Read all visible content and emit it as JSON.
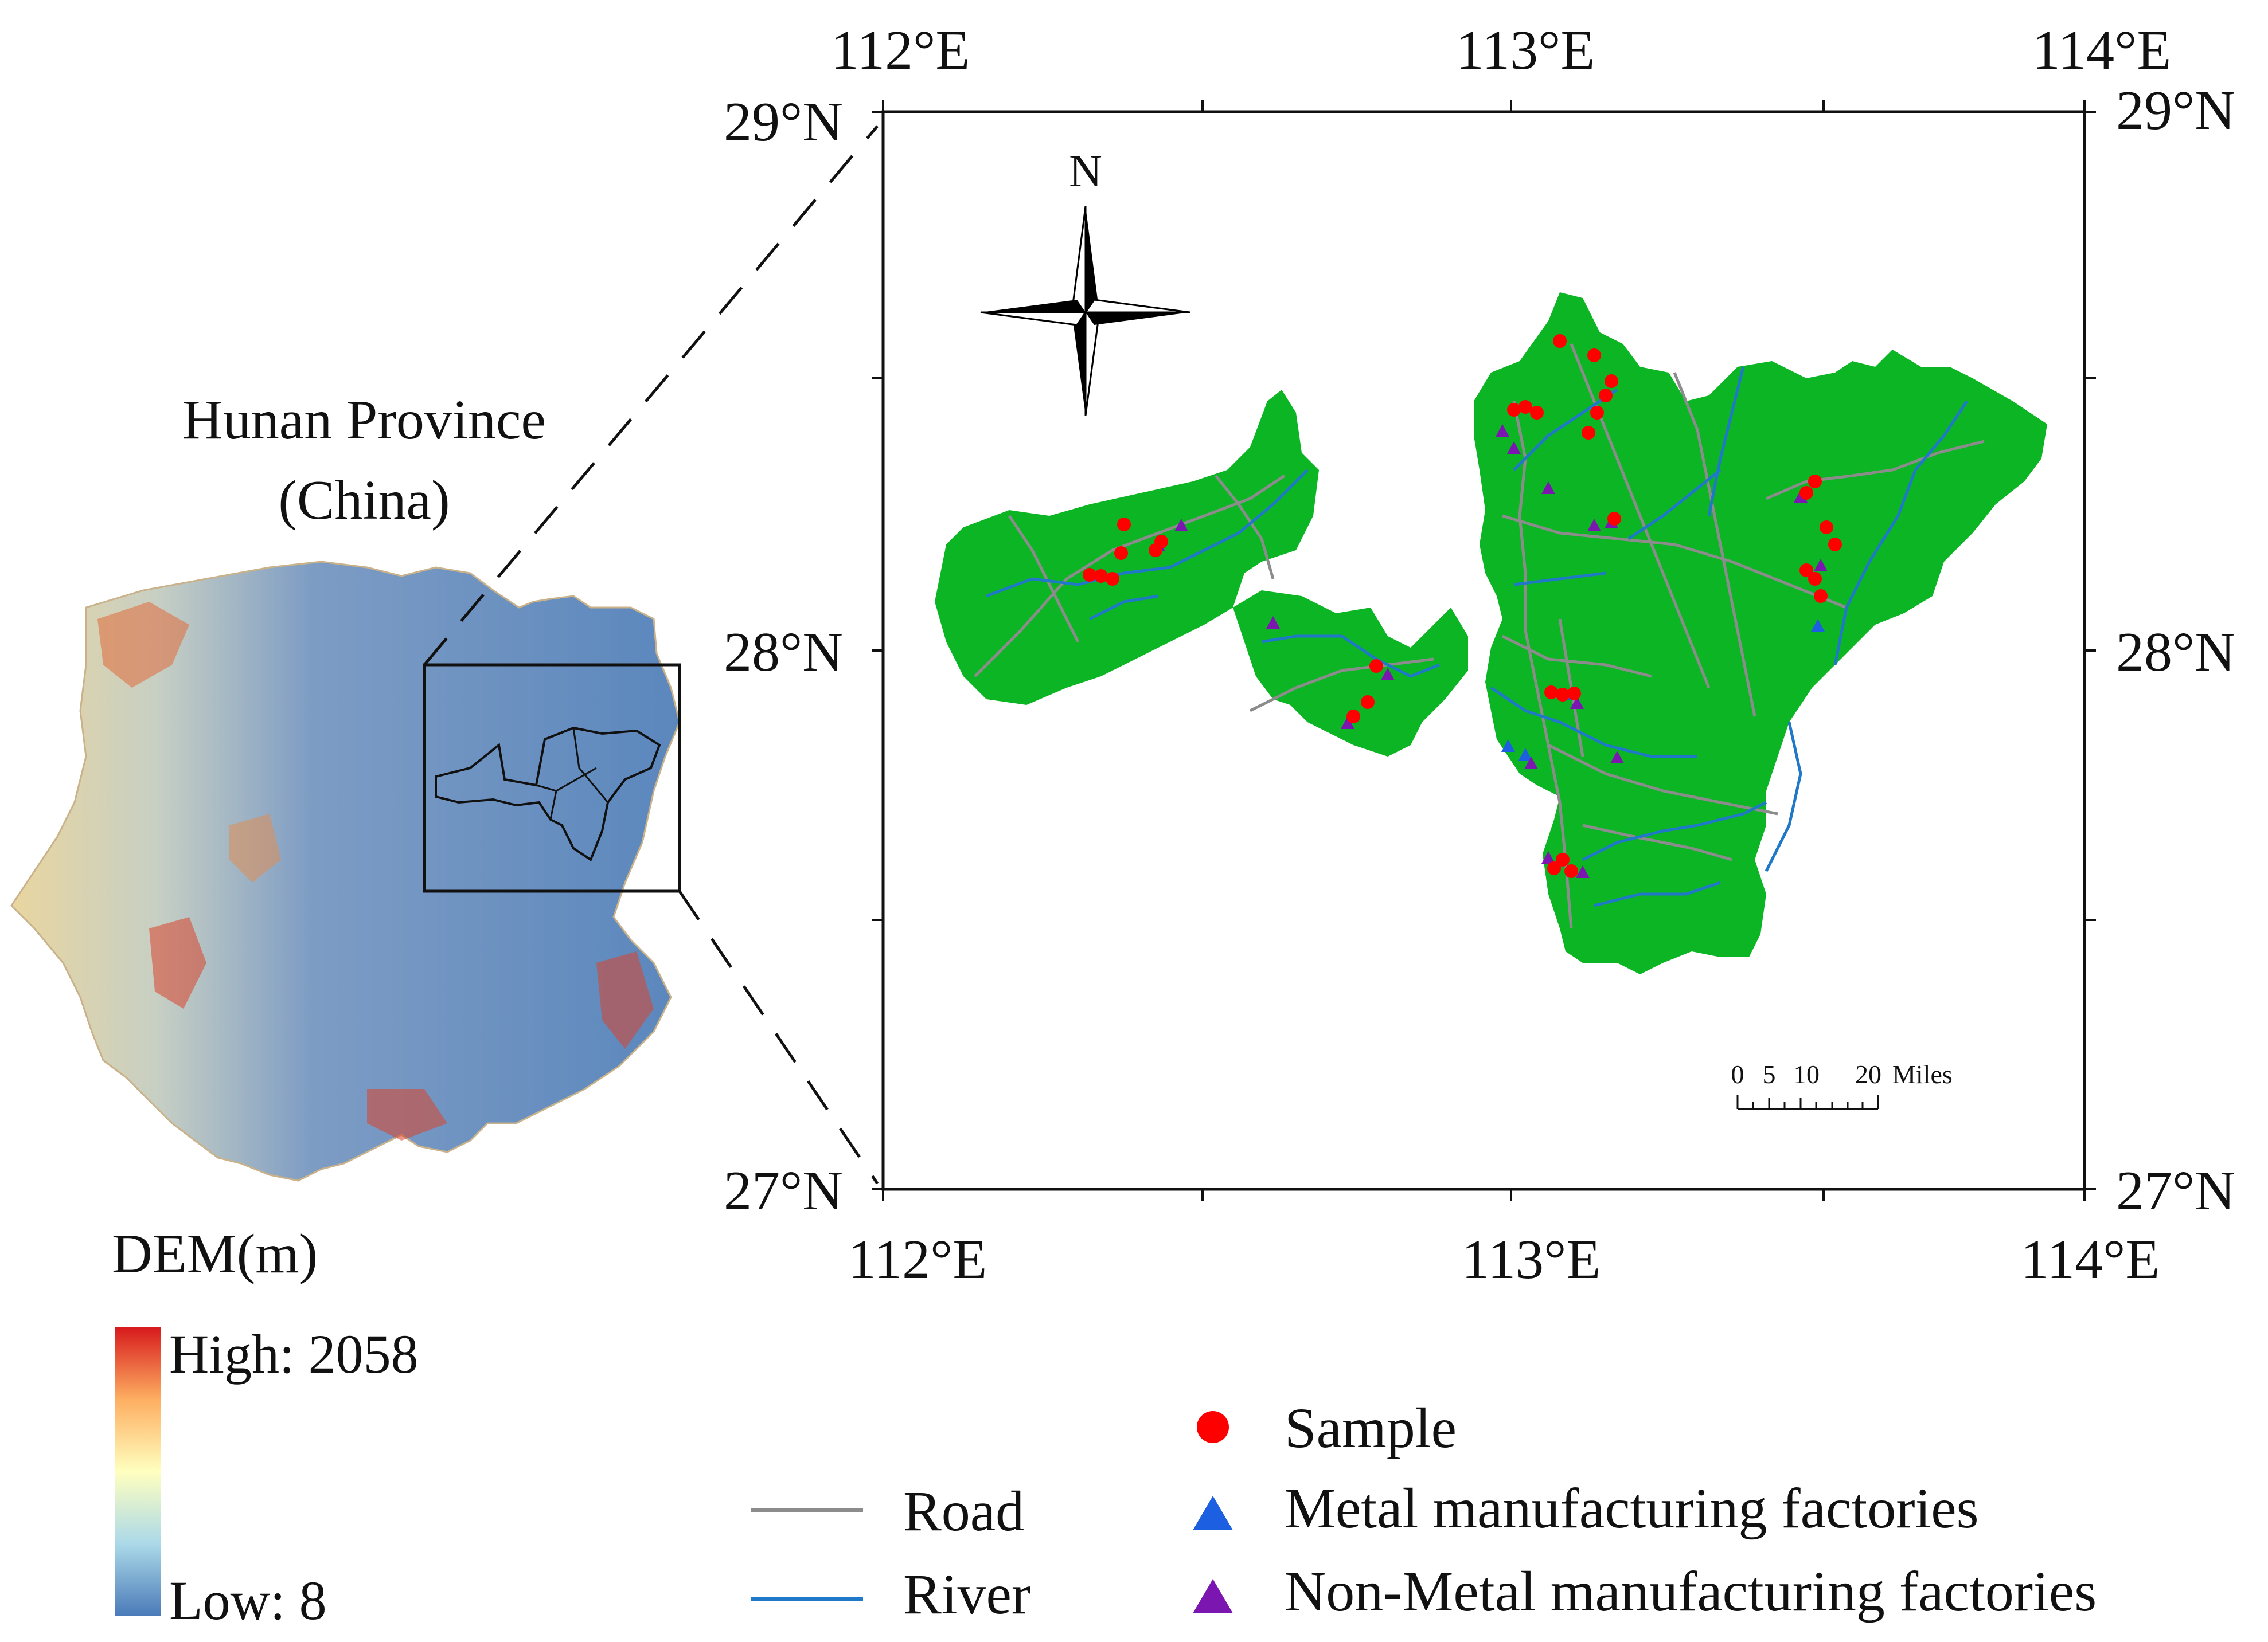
{
  "overview": {
    "title_line1": "Hunan Province",
    "title_line2": "(China)"
  },
  "dem_legend": {
    "title": "DEM(m)",
    "high_label": "High:  2058",
    "low_label": "Low:  8",
    "ramp_colors": [
      "#d7191c",
      "#fdae61",
      "#ffffbf",
      "#abd9e9",
      "#4a7ab8"
    ]
  },
  "map": {
    "lon_top": [
      "112°E",
      "113°E",
      "114°E"
    ],
    "lon_bottom": [
      "112°E",
      "113°E",
      "114°E"
    ],
    "lat_left": [
      "29°N",
      "28°N",
      "27°N"
    ],
    "lat_right": [
      "29°N",
      "28°N",
      "27°N"
    ],
    "north_label": "N",
    "scale_numbers": [
      "0",
      "5",
      "10",
      "20"
    ],
    "scale_unit": "Miles"
  },
  "legend": {
    "road": "Road",
    "river": "River",
    "sample": "Sample",
    "metal": "Metal manufacturing factories",
    "nonmetal": "Non-Metal manufacturing factories"
  },
  "colors": {
    "study_area": "#0cb523",
    "road": "#8c8c8c",
    "river": "#1f78c8",
    "sample": "#ff0000",
    "metal": "#1c5fe0",
    "nonmetal": "#7b17b0",
    "dem_blue": "#5b87bd"
  }
}
